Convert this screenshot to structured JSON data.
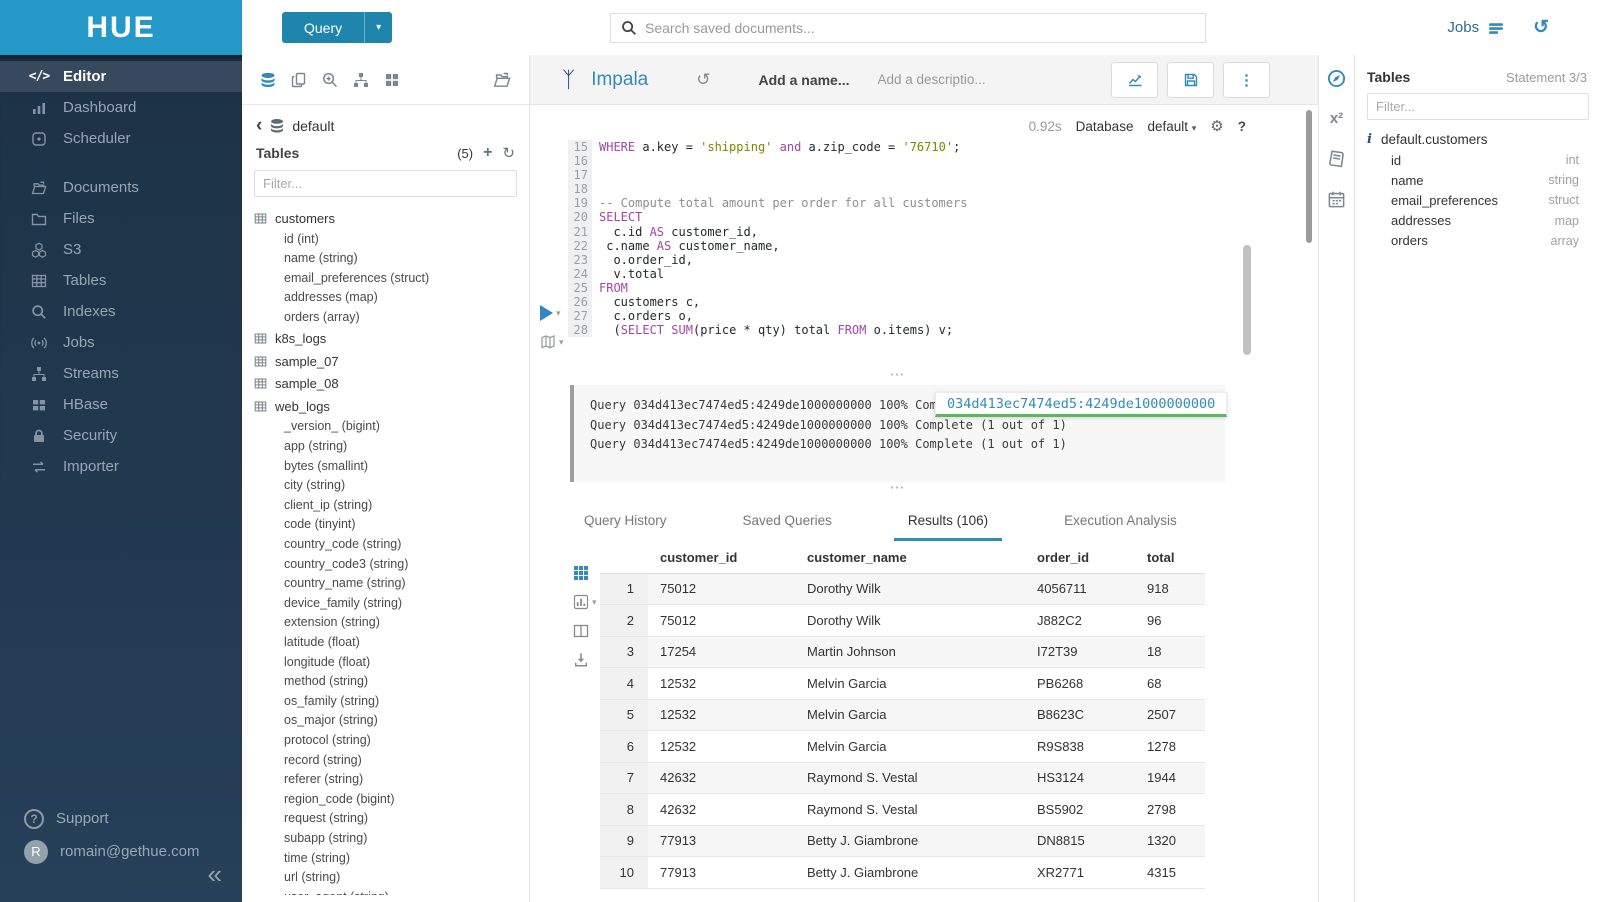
{
  "glyphs": {
    "caret_down": "▾",
    "kebab": "⋮",
    "dots": "⋯",
    "collapse": "«",
    "back": "‹",
    "plus": "+",
    "refresh": "↻",
    "history": "↺",
    "gear": "⚙",
    "help": "?",
    "superscript_fx": "x²",
    "code": "</>",
    "impala": "ᛉ",
    "info": "i",
    "question": "?"
  },
  "brand": {
    "logo_text": "HUE"
  },
  "topbar": {
    "query_label": "Query",
    "search_placeholder": "Search saved documents...",
    "jobs_label": "Jobs"
  },
  "sidebar": {
    "items": [
      {
        "label": "Editor",
        "icon": "code",
        "active": true
      },
      {
        "label": "Dashboard",
        "icon": "dashboard"
      },
      {
        "label": "Scheduler",
        "icon": "scheduler"
      },
      {
        "divider": true
      },
      {
        "label": "Documents",
        "icon": "documents"
      },
      {
        "label": "Files",
        "icon": "folder"
      },
      {
        "label": "S3",
        "icon": "s3"
      },
      {
        "label": "Tables",
        "icon": "table"
      },
      {
        "label": "Indexes",
        "icon": "magnifier"
      },
      {
        "label": "Jobs",
        "icon": "broadcast"
      },
      {
        "label": "Streams",
        "icon": "sitemap"
      },
      {
        "label": "HBase",
        "icon": "blocks"
      },
      {
        "label": "Security",
        "icon": "lock"
      },
      {
        "label": "Importer",
        "icon": "swap"
      }
    ],
    "support_label": "Support",
    "user_initial": "R",
    "user_email": "romain@gethue.com"
  },
  "left_panel": {
    "breadcrumb_db": "default",
    "title": "Tables",
    "count": "(5)",
    "filter_placeholder": "Filter...",
    "tables": [
      {
        "name": "customers",
        "columns": [
          "id (int)",
          "name (string)",
          "email_preferences (struct)",
          "addresses (map)",
          "orders (array)"
        ]
      },
      {
        "name": "k8s_logs",
        "columns": []
      },
      {
        "name": "sample_07",
        "columns": []
      },
      {
        "name": "sample_08",
        "columns": []
      },
      {
        "name": "web_logs",
        "columns": [
          "_version_ (bigint)",
          "app (string)",
          "bytes (smallint)",
          "city (string)",
          "client_ip (string)",
          "code (tinyint)",
          "country_code (string)",
          "country_code3 (string)",
          "country_name (string)",
          "device_family (string)",
          "extension (string)",
          "latitude (float)",
          "longitude (float)",
          "method (string)",
          "os_family (string)",
          "os_major (string)",
          "protocol (string)",
          "record (string)",
          "referer (string)",
          "region_code (bigint)",
          "request (string)",
          "subapp (string)",
          "time (string)",
          "url (string)",
          "user_agent (string)"
        ]
      }
    ]
  },
  "snippet": {
    "engine": "Impala",
    "name_placeholder": "Add a name...",
    "description_placeholder": "Add a descriptio...",
    "exec_time": "0.92s",
    "database_label": "Database",
    "database_value": "default"
  },
  "editor": {
    "code": [
      {
        "n": "15",
        "seg": [
          {
            "t": "kw",
            "v": "WHERE"
          },
          {
            "t": "pl",
            "v": " a.key = "
          },
          {
            "t": "str",
            "v": "'shipping'"
          },
          {
            "t": "pl",
            "v": " "
          },
          {
            "t": "kw",
            "v": "and"
          },
          {
            "t": "pl",
            "v": " a.zip_code = "
          },
          {
            "t": "str",
            "v": "'76710'"
          },
          {
            "t": "pl",
            "v": ";"
          }
        ]
      },
      {
        "n": "16",
        "seg": []
      },
      {
        "n": "17",
        "seg": []
      },
      {
        "n": "18",
        "seg": []
      },
      {
        "n": "19",
        "seg": [
          {
            "t": "cm",
            "v": "-- Compute total amount per order for all customers"
          }
        ]
      },
      {
        "n": "20",
        "seg": [
          {
            "t": "kw",
            "v": "SELECT"
          }
        ]
      },
      {
        "n": "21",
        "seg": [
          {
            "t": "pl",
            "v": "  c.id "
          },
          {
            "t": "kw",
            "v": "AS"
          },
          {
            "t": "pl",
            "v": " customer_id,"
          }
        ]
      },
      {
        "n": "22",
        "seg": [
          {
            "t": "pl",
            "v": " c.name "
          },
          {
            "t": "kw",
            "v": "AS"
          },
          {
            "t": "pl",
            "v": " customer_name,"
          }
        ]
      },
      {
        "n": "23",
        "seg": [
          {
            "t": "pl",
            "v": "  o.order_id,"
          }
        ]
      },
      {
        "n": "24",
        "seg": [
          {
            "t": "pl",
            "v": "  v.total"
          }
        ]
      },
      {
        "n": "25",
        "seg": [
          {
            "t": "kw",
            "v": "FROM"
          }
        ]
      },
      {
        "n": "26",
        "seg": [
          {
            "t": "pl",
            "v": "  customers c,"
          }
        ]
      },
      {
        "n": "27",
        "seg": [
          {
            "t": "pl",
            "v": "  c.orders o,"
          }
        ]
      },
      {
        "n": "28",
        "seg": [
          {
            "t": "pl",
            "v": "  ("
          },
          {
            "t": "kw",
            "v": "SELECT"
          },
          {
            "t": "pl",
            "v": " "
          },
          {
            "t": "kw",
            "v": "SUM"
          },
          {
            "t": "pl",
            "v": "(price * qty) total "
          },
          {
            "t": "kw",
            "v": "FROM"
          },
          {
            "t": "pl",
            "v": " o.items) v;"
          }
        ]
      }
    ]
  },
  "log": {
    "lines": [
      "Query 034d413ec7474ed5:4249de1000000000 100% Complete (1 out of 1)",
      "Query 034d413ec7474ed5:4249de1000000000 100% Complete (1 out of 1)",
      "Query 034d413ec7474ed5:4249de1000000000 100% Complete (1 out of 1)"
    ],
    "tooltip": "034d413ec7474ed5:4249de1000000000"
  },
  "tabs": [
    {
      "label": "Query History",
      "active": false
    },
    {
      "label": "Saved Queries",
      "active": false
    },
    {
      "label": "Results (106)",
      "active": true
    },
    {
      "label": "Execution Analysis",
      "active": false
    }
  ],
  "results": {
    "headers": [
      "customer_id",
      "customer_name",
      "order_id",
      "total"
    ],
    "rows": [
      [
        "1",
        "75012",
        "Dorothy Wilk",
        "4056711",
        "918"
      ],
      [
        "2",
        "75012",
        "Dorothy Wilk",
        "J882C2",
        "96"
      ],
      [
        "3",
        "17254",
        "Martin Johnson",
        "I72T39",
        "18"
      ],
      [
        "4",
        "12532",
        "Melvin Garcia",
        "PB6268",
        "68"
      ],
      [
        "5",
        "12532",
        "Melvin Garcia",
        "B8623C",
        "2507"
      ],
      [
        "6",
        "12532",
        "Melvin Garcia",
        "R9S838",
        "1278"
      ],
      [
        "7",
        "42632",
        "Raymond S. Vestal",
        "HS3124",
        "1944"
      ],
      [
        "8",
        "42632",
        "Raymond S. Vestal",
        "BS5902",
        "2798"
      ],
      [
        "9",
        "77913",
        "Betty J. Giambrone",
        "DN8815",
        "1320"
      ],
      [
        "10",
        "77913",
        "Betty J. Giambrone",
        "XR2771",
        "4315"
      ]
    ]
  },
  "right_panel": {
    "title": "Tables",
    "statement": "Statement 3/3",
    "filter_placeholder": "Filter...",
    "table_name": "default.customers",
    "columns": [
      {
        "name": "id",
        "type": "int"
      },
      {
        "name": "name",
        "type": "string"
      },
      {
        "name": "email_preferences",
        "type": "struct"
      },
      {
        "name": "addresses",
        "type": "map"
      },
      {
        "name": "orders",
        "type": "array"
      }
    ]
  },
  "colors": {
    "accent": "#338bb8",
    "brand_teal": "#2499c7",
    "keyword": "#a147a6",
    "string": "#7d8600",
    "comment": "#8e8e8e",
    "tooltip_underline": "#5cb85c"
  }
}
